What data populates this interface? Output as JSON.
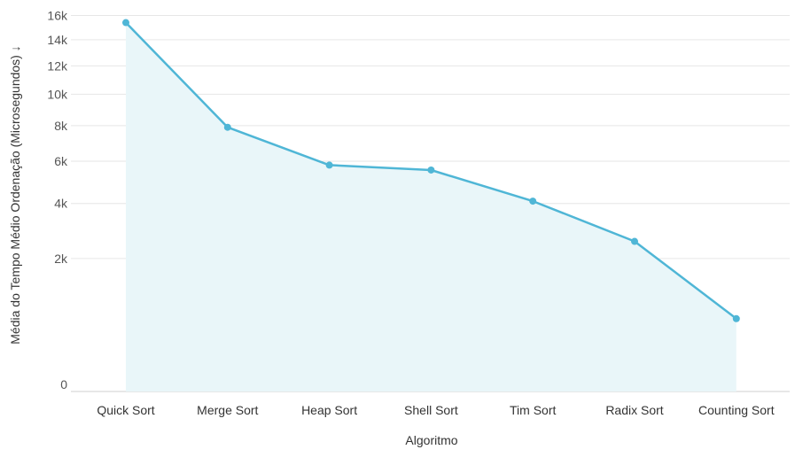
{
  "chart_data": {
    "type": "area",
    "xlabel": "Algoritmo",
    "ylabel": "Média do Tempo Médio Ordenação (Microsegundos) ↓",
    "y_scale": "sqrt",
    "ylim": [
      0,
      16800
    ],
    "y_ticks": [
      0,
      2000,
      4000,
      6000,
      8000,
      10000,
      12000,
      14000,
      16000
    ],
    "y_tick_labels": [
      "0",
      "2k",
      "4k",
      "6k",
      "8k",
      "10k",
      "12k",
      "14k",
      "16k"
    ],
    "grid": true,
    "categories": [
      "Quick Sort",
      "Merge Sort",
      "Heap Sort",
      "Shell Sort",
      "Tim Sort",
      "Radix Sort",
      "Counting Sort"
    ],
    "series": [
      {
        "values": [
          15400,
          7900,
          5800,
          5550,
          4100,
          2550,
          600
        ],
        "color": "#4fb6d6",
        "fill": "#e9f6f9"
      }
    ]
  }
}
